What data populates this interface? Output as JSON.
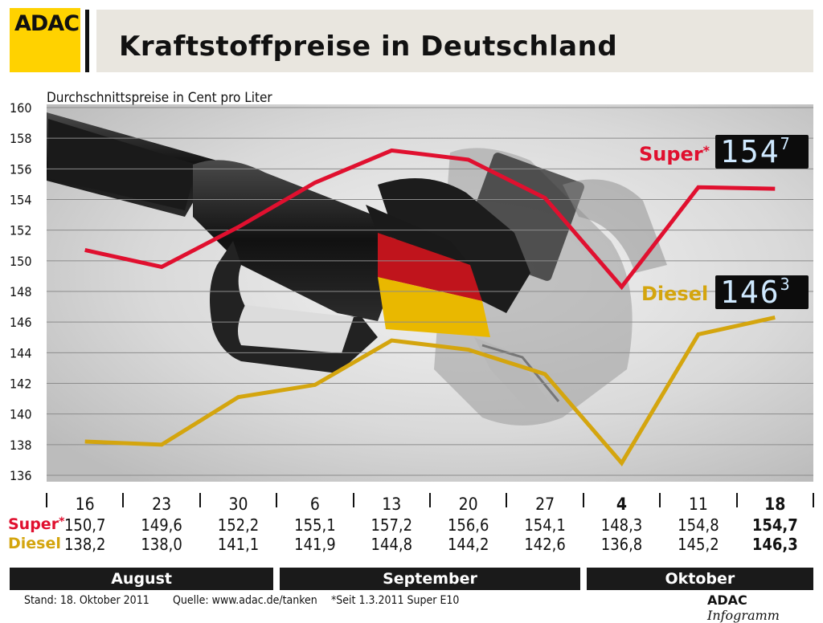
{
  "header": {
    "logo_text": "ADAC",
    "title": "Kraftstoffpreise in Deutschland"
  },
  "chart_data": {
    "type": "line",
    "title": "Kraftstoffpreise in Deutschland",
    "subtitle": "Durchschnittspreise in Cent pro Liter",
    "ylim": [
      136,
      160
    ],
    "yticks": [
      136,
      138,
      140,
      142,
      144,
      146,
      148,
      150,
      152,
      154,
      156,
      158,
      160
    ],
    "grid": true,
    "categories": [
      "16",
      "23",
      "30",
      "6",
      "13",
      "20",
      "27",
      "4",
      "11",
      "18"
    ],
    "bold_categories": [
      "4",
      "18"
    ],
    "months": [
      {
        "name": "August",
        "from": 0,
        "to": 2
      },
      {
        "name": "September",
        "from": 3,
        "to": 6
      },
      {
        "name": "Oktober",
        "from": 7,
        "to": 9
      }
    ],
    "series": [
      {
        "name": "Super",
        "marker": "*",
        "color": "#e0102f",
        "values": [
          150.7,
          149.6,
          152.2,
          155.1,
          157.2,
          156.6,
          154.1,
          148.3,
          154.8,
          154.7
        ],
        "labels": [
          "150,7",
          "149,6",
          "152,2",
          "155,1",
          "157,2",
          "156,6",
          "154,1",
          "148,3",
          "154,8",
          "154,7"
        ],
        "display": {
          "main": "154",
          "sup": "7"
        }
      },
      {
        "name": "Diesel",
        "marker": "",
        "color": "#d4a50e",
        "values": [
          138.2,
          138.0,
          141.1,
          141.9,
          144.8,
          144.2,
          142.6,
          136.8,
          145.2,
          146.3
        ],
        "labels": [
          "138,2",
          "138,0",
          "141,1",
          "141,9",
          "144,8",
          "144,2",
          "142,6",
          "136,8",
          "145,2",
          "146,3"
        ],
        "display": {
          "main": "146",
          "sup": "3"
        }
      }
    ]
  },
  "footer": {
    "stand": "Stand: 18. Oktober 2011",
    "quelle": "Quelle: www.adac.de/tanken",
    "note": "*Seit 1.3.2011 Super E10",
    "brand_bold": "ADAC",
    "brand_italic": "Infogramm"
  }
}
